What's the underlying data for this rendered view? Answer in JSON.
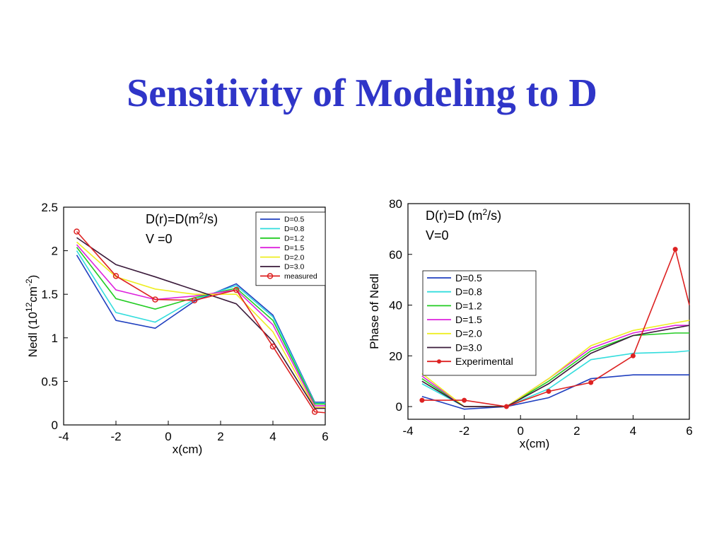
{
  "title": "Sensitivity of Modeling to D",
  "chart_data": [
    {
      "type": "line",
      "ylabel": "Nedl (10",
      "ylabel_sup1": "12",
      "ylabel_mid": "cm",
      "ylabel_sup2": "-2",
      "ylabel_end": ")",
      "xlabel": "x(cm)",
      "annotation_line1": "D(r)=D(m",
      "annotation_sup": "2",
      "annotation_line1_end": "/s)",
      "annotation_line2": "V =0",
      "xlim": [
        -4,
        6
      ],
      "ylim": [
        0,
        2.5
      ],
      "xticks": [
        "-4",
        "-2",
        "0",
        "2",
        "4",
        "6"
      ],
      "yticks": [
        "0",
        "0.5",
        "1",
        "1.5",
        "2",
        "2.5"
      ],
      "legend_position": "top-right",
      "grid": false,
      "x": [
        -3.5,
        -2,
        -0.5,
        1,
        2.6,
        4,
        5.6,
        6
      ],
      "series": [
        {
          "name": "D=0.5",
          "color": "#1f3fbf",
          "values": [
            1.95,
            1.2,
            1.11,
            1.42,
            1.62,
            1.26,
            0.26,
            0.26
          ]
        },
        {
          "name": "D=0.8",
          "color": "#33dddd",
          "values": [
            2.0,
            1.29,
            1.18,
            1.44,
            1.6,
            1.24,
            0.25,
            0.25
          ]
        },
        {
          "name": "D=1.2",
          "color": "#22cc22",
          "values": [
            2.04,
            1.45,
            1.33,
            1.46,
            1.57,
            1.2,
            0.24,
            0.24
          ]
        },
        {
          "name": "D=1.5",
          "color": "#dd22dd",
          "values": [
            2.07,
            1.55,
            1.44,
            1.48,
            1.55,
            1.15,
            0.22,
            0.22
          ]
        },
        {
          "name": "D=2.0",
          "color": "#eeee22",
          "values": [
            2.1,
            1.7,
            1.56,
            1.5,
            1.5,
            1.07,
            0.2,
            0.2
          ]
        },
        {
          "name": "D=3.0",
          "color": "#3a1a3a",
          "values": [
            2.15,
            1.84,
            1.7,
            1.55,
            1.39,
            0.96,
            0.19,
            0.19
          ]
        },
        {
          "name": "measured",
          "color": "#dd2222",
          "marker": "circle",
          "values": [
            2.22,
            1.71,
            1.44,
            1.43,
            1.55,
            0.9,
            0.15,
            0.14
          ]
        }
      ]
    },
    {
      "type": "line",
      "ylabel": "Phase of Nedl",
      "xlabel": "x(cm)",
      "annotation_line1": "D(r)=D (m",
      "annotation_sup": "2",
      "annotation_line1_end": "/s)",
      "annotation_line2": "V=0",
      "xlim": [
        -4,
        6
      ],
      "ylim": [
        -5,
        80
      ],
      "xticks": [
        "-4",
        "-2",
        "0",
        "2",
        "4",
        "6"
      ],
      "yticks": [
        "0",
        "20",
        "40",
        "60",
        "80"
      ],
      "legend_position": "center-left",
      "grid": false,
      "series": [
        {
          "name": "D=0.5",
          "color": "#1f3fbf",
          "x": [
            -3.5,
            -2,
            -0.5,
            1,
            2.5,
            4,
            5.5,
            6
          ],
          "values": [
            4,
            -1,
            0,
            3.5,
            11,
            12.5,
            12.5,
            12.5
          ]
        },
        {
          "name": "D=0.8",
          "color": "#33dddd",
          "x": [
            -3.5,
            -2,
            -0.5,
            1,
            2.5,
            4,
            5.5,
            6
          ],
          "values": [
            9,
            0,
            0,
            7,
            18.5,
            21,
            21.5,
            22
          ]
        },
        {
          "name": "D=1.2",
          "color": "#22cc22",
          "x": [
            -3.5,
            -2,
            -0.5,
            1,
            2.5,
            4,
            5.5,
            6
          ],
          "values": [
            11,
            0,
            0,
            10,
            22,
            28,
            29,
            29
          ]
        },
        {
          "name": "D=1.5",
          "color": "#dd22dd",
          "x": [
            -3.5,
            -2,
            -0.5,
            1,
            2.5,
            4,
            5.5,
            6
          ],
          "values": [
            12,
            0,
            0,
            11,
            23,
            29,
            32,
            32
          ]
        },
        {
          "name": "D=2.0",
          "color": "#eeee22",
          "x": [
            -3.5,
            -2,
            -0.5,
            1,
            2.5,
            4,
            5.5,
            6
          ],
          "values": [
            13,
            0,
            0,
            11,
            24,
            30,
            33,
            34
          ]
        },
        {
          "name": "D=3.0",
          "color": "#3a1a3a",
          "x": [
            -3.5,
            -2,
            -0.5,
            1,
            2.5,
            4,
            5.5,
            6
          ],
          "values": [
            10,
            0,
            0,
            9,
            21,
            28,
            31,
            32
          ]
        },
        {
          "name": "Experimental",
          "color": "#dd2222",
          "marker": "dot",
          "x": [
            -3.5,
            -2,
            -0.5,
            1,
            2.5,
            4,
            5.5,
            6
          ],
          "values": [
            2.5,
            2.5,
            0,
            6,
            9.5,
            20,
            62,
            40
          ]
        }
      ]
    }
  ]
}
